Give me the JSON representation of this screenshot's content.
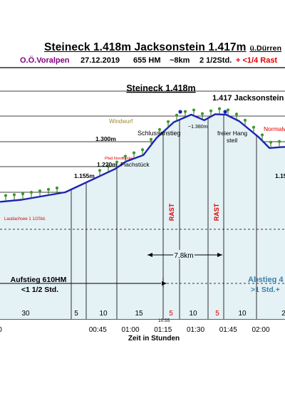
{
  "header": {
    "title": "Steineck 1.418m Jacksonstein 1.417m",
    "title_suffix": "ü.Dürren",
    "region": "O.Ö.Voralpen",
    "date": "27.12.2019",
    "elevation_gain": "655  HM",
    "distance": "~8km",
    "duration": "2  1/2Std.",
    "rest_note": "+ <1/4 Rast"
  },
  "colors": {
    "profile_line": "#1a24b4",
    "fill": "#e4f1f5",
    "region_text": "#800080",
    "red_text": "#e00000",
    "descent_text": "#3c82a8"
  },
  "chart_data": {
    "type": "area",
    "xlabel": "Zeit in Stunden",
    "time_ticks": [
      "0",
      "00:45",
      "01:00",
      "01:15",
      "01:30",
      "01:45",
      "02:00"
    ],
    "minute_marks": [
      0,
      45,
      60,
      75,
      90,
      105,
      120
    ],
    "profile": {
      "x_minutes": [
        0,
        10,
        30,
        53,
        58,
        66,
        72,
        80,
        88,
        94,
        99,
        104,
        110,
        119,
        124,
        130
      ],
      "y_m": [
        1000,
        1010,
        1045,
        1155,
        1190,
        1220,
        1300,
        1375,
        1410,
        1384,
        1412,
        1410,
        1380,
        1305,
        1253,
        1258
      ]
    },
    "segment_durations": [
      "30",
      "5",
      "10",
      "15",
      "5",
      "10",
      "5",
      "10",
      "2"
    ],
    "rest_label": "RAST",
    "distance_label": "7,8km",
    "time_marker": "10:55",
    "summit_labels": [
      "Steineck 1.418m",
      "1.417 Jacksonstein"
    ],
    "elevation_labels": [
      "1.155m",
      "1.220m",
      "1.300m",
      "~1.380m",
      "1.15"
    ],
    "place_labels": [
      "Windwurf",
      "Schlussanstieg",
      "Flachstück",
      "freier Hang",
      "steil",
      "Normalweg",
      "Pfad Nordflanke",
      "Laudachsee 1 1/2Std."
    ],
    "ascent_label": [
      "Aufstieg 610HM",
      "<1 1/2 Std."
    ],
    "descent_label": [
      "Abstieg 4",
      ">1  Std.+"
    ]
  }
}
